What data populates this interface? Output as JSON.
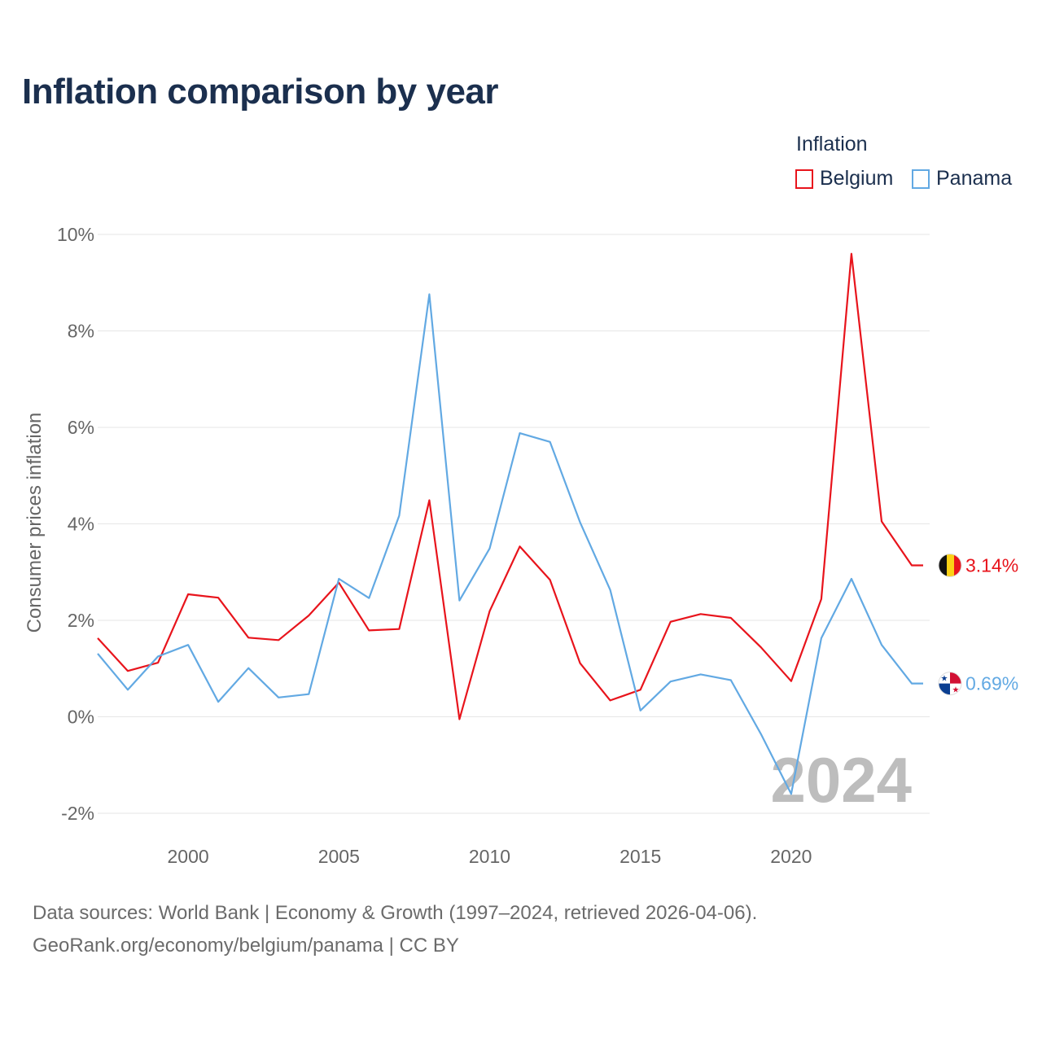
{
  "page": {
    "title": "Inflation comparison by year",
    "source_line1": "Data sources: World Bank | Economy & Growth (1997–2024, retrieved 2026-04-06).",
    "source_line2": "GeoRank.org/economy/belgium/panama | CC BY"
  },
  "legend": {
    "title": "Inflation",
    "items": [
      {
        "label": "Belgium",
        "color": "#e8141c"
      },
      {
        "label": "Panama",
        "color": "#62a9e3"
      }
    ]
  },
  "chart_data": {
    "type": "line",
    "title": "Inflation comparison by year",
    "ylabel": "Consumer prices inflation",
    "xlabel": "",
    "xlim": [
      1997,
      2024
    ],
    "ylim": [
      -2,
      10
    ],
    "x_ticks": [
      2000,
      2005,
      2010,
      2015,
      2020
    ],
    "y_ticks": [
      -2,
      0,
      2,
      4,
      6,
      8,
      10
    ],
    "y_tick_labels": [
      "-2%",
      "0%",
      "2%",
      "4%",
      "6%",
      "8%",
      "10%"
    ],
    "year_marker": "2024",
    "x": [
      1997,
      1998,
      1999,
      2000,
      2001,
      2002,
      2003,
      2004,
      2005,
      2006,
      2007,
      2008,
      2009,
      2010,
      2011,
      2012,
      2013,
      2014,
      2015,
      2016,
      2017,
      2018,
      2019,
      2020,
      2021,
      2022,
      2023,
      2024
    ],
    "series": [
      {
        "name": "Belgium",
        "color": "#e8141c",
        "end_label": "3.14%",
        "flag": "belgium-flag-icon",
        "values": [
          1.63,
          0.95,
          1.12,
          2.54,
          2.47,
          1.64,
          1.59,
          2.1,
          2.78,
          1.79,
          1.82,
          4.49,
          -0.05,
          2.19,
          3.53,
          2.84,
          1.11,
          0.34,
          0.56,
          1.97,
          2.13,
          2.05,
          1.44,
          0.74,
          2.44,
          9.6,
          4.05,
          3.14
        ]
      },
      {
        "name": "Panama",
        "color": "#62a9e3",
        "end_label": "0.69%",
        "flag": "panama-flag-icon",
        "values": [
          1.31,
          0.56,
          1.25,
          1.49,
          0.31,
          1.01,
          0.4,
          0.47,
          2.86,
          2.46,
          4.17,
          8.76,
          2.41,
          3.49,
          5.88,
          5.7,
          4.03,
          2.63,
          0.13,
          0.73,
          0.88,
          0.76,
          -0.36,
          -1.6,
          1.63,
          2.86,
          1.49,
          0.69
        ]
      }
    ]
  }
}
